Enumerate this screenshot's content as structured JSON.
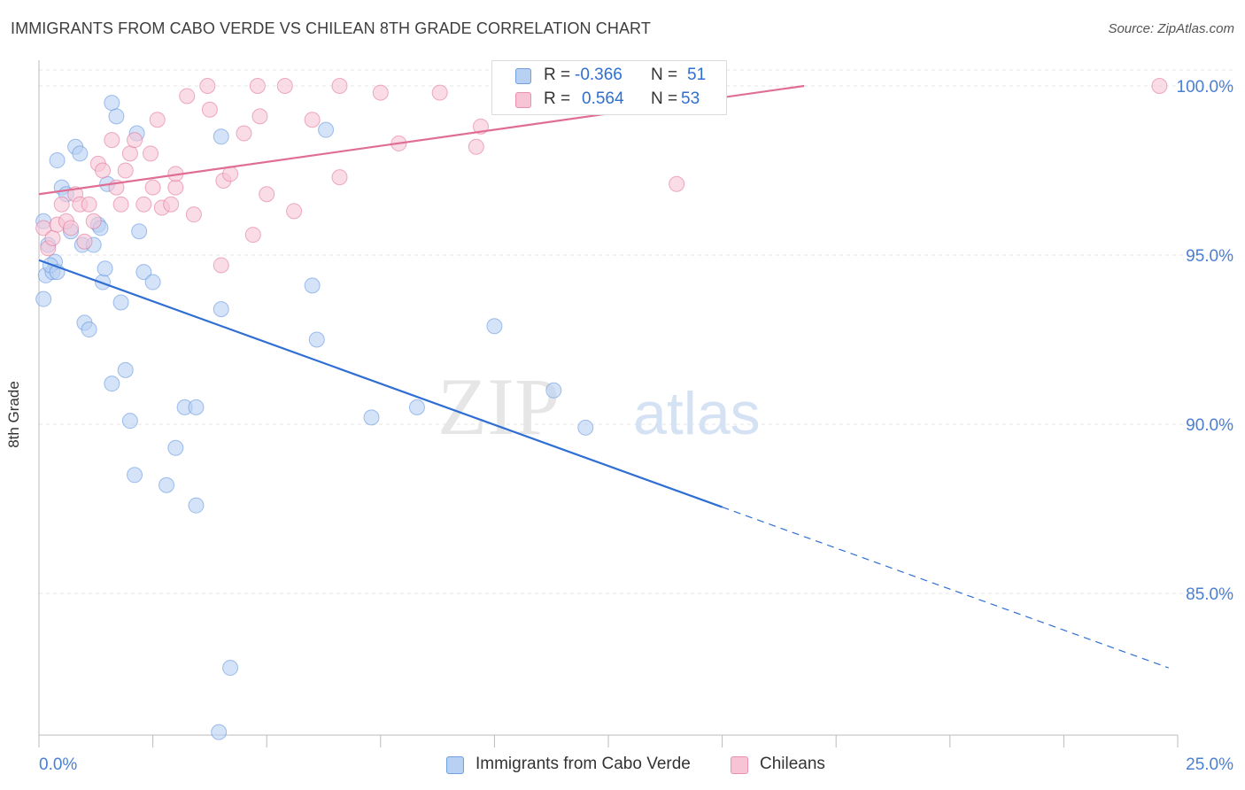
{
  "title": "IMMIGRANTS FROM CABO VERDE VS CHILEAN 8TH GRADE CORRELATION CHART",
  "source": "Source: ZipAtlas.com",
  "watermark": {
    "zip": "ZIP",
    "atlas": "atlas"
  },
  "stats": [
    {
      "r_label": "R = ",
      "r_value": "-0.366",
      "n_label": "N = ",
      "n_value": "51",
      "color": "#5b8fe0"
    },
    {
      "r_label": "R = ",
      "r_value": "0.564",
      "n_label": "N = ",
      "n_value": "53",
      "color": "#eb8fb0"
    }
  ],
  "legend": [
    {
      "label": "Immigrants from Cabo Verde",
      "color": "#b8d0f2"
    },
    {
      "label": "Chileans",
      "color": "#f7c4d5"
    }
  ],
  "chart_data": {
    "type": "scatter",
    "title": "IMMIGRANTS FROM CABO VERDE VS CHILEAN 8TH GRADE CORRELATION CHART",
    "xlabel": "",
    "ylabel": "8th Grade",
    "xlim": [
      0,
      25
    ],
    "ylim": [
      80.5,
      100.8
    ],
    "x_tick_labels": [
      "0.0%",
      "25.0%"
    ],
    "y_ticks": [
      85,
      90,
      95,
      100
    ],
    "y_tick_labels": [
      "85.0%",
      "90.0%",
      "95.0%",
      "100.0%"
    ],
    "grid": true,
    "series": [
      {
        "name": "Immigrants from Cabo Verde",
        "color": "#5b8fe0",
        "fill": "#b8d0f2",
        "trend": {
          "x0": 0,
          "y0": 94.85,
          "x1": 15.0,
          "y1": 87.55,
          "dash_to_x": 24.8,
          "dash_to_y": 82.8
        },
        "points": [
          [
            0.1,
            96.0
          ],
          [
            0.15,
            94.4
          ],
          [
            0.2,
            95.3
          ],
          [
            0.3,
            94.5
          ],
          [
            0.35,
            94.8
          ],
          [
            0.4,
            97.8
          ],
          [
            0.5,
            97.0
          ],
          [
            0.6,
            96.8
          ],
          [
            0.7,
            95.7
          ],
          [
            0.8,
            98.2
          ],
          [
            0.9,
            98.0
          ],
          [
            0.95,
            95.3
          ],
          [
            1.0,
            93.0
          ],
          [
            1.1,
            92.8
          ],
          [
            1.2,
            95.3
          ],
          [
            1.3,
            95.9
          ],
          [
            1.35,
            95.8
          ],
          [
            1.4,
            94.2
          ],
          [
            1.45,
            94.6
          ],
          [
            1.5,
            97.1
          ],
          [
            1.6,
            91.2
          ],
          [
            1.6,
            99.5
          ],
          [
            1.7,
            99.1
          ],
          [
            1.8,
            93.6
          ],
          [
            1.9,
            91.6
          ],
          [
            2.0,
            90.1
          ],
          [
            2.1,
            88.5
          ],
          [
            2.15,
            98.6
          ],
          [
            2.2,
            95.7
          ],
          [
            2.3,
            94.5
          ],
          [
            2.5,
            94.2
          ],
          [
            2.8,
            88.2
          ],
          [
            3.0,
            89.3
          ],
          [
            3.2,
            90.5
          ],
          [
            3.45,
            90.5
          ],
          [
            3.45,
            87.6
          ],
          [
            3.95,
            80.9
          ],
          [
            4.0,
            93.4
          ],
          [
            4.0,
            98.5
          ],
          [
            4.2,
            82.8
          ],
          [
            6.0,
            94.1
          ],
          [
            6.1,
            92.5
          ],
          [
            6.3,
            98.7
          ],
          [
            7.3,
            90.2
          ],
          [
            8.3,
            90.5
          ],
          [
            10.0,
            92.9
          ],
          [
            11.3,
            91.0
          ],
          [
            12.0,
            89.9
          ],
          [
            0.1,
            93.7
          ],
          [
            0.25,
            94.7
          ],
          [
            0.4,
            94.5
          ]
        ]
      },
      {
        "name": "Chileans",
        "color": "#e06e94",
        "fill": "#f7c4d5",
        "trend": {
          "x0": 0,
          "y0": 96.8,
          "x1": 16.8,
          "y1": 100.0
        },
        "points": [
          [
            0.1,
            95.8
          ],
          [
            0.2,
            95.2
          ],
          [
            0.3,
            95.5
          ],
          [
            0.4,
            95.9
          ],
          [
            0.5,
            96.5
          ],
          [
            0.6,
            96.0
          ],
          [
            0.7,
            95.8
          ],
          [
            0.8,
            96.8
          ],
          [
            0.9,
            96.5
          ],
          [
            1.0,
            95.4
          ],
          [
            1.1,
            96.5
          ],
          [
            1.2,
            96.0
          ],
          [
            1.3,
            97.7
          ],
          [
            1.4,
            97.5
          ],
          [
            1.6,
            98.4
          ],
          [
            1.7,
            97.0
          ],
          [
            1.8,
            96.5
          ],
          [
            1.9,
            97.5
          ],
          [
            2.0,
            98.0
          ],
          [
            2.1,
            98.4
          ],
          [
            2.3,
            96.5
          ],
          [
            2.45,
            98.0
          ],
          [
            2.5,
            97.0
          ],
          [
            2.6,
            99.0
          ],
          [
            2.7,
            96.4
          ],
          [
            2.9,
            96.5
          ],
          [
            3.0,
            97.0
          ],
          [
            3.0,
            97.4
          ],
          [
            3.25,
            99.7
          ],
          [
            3.4,
            96.2
          ],
          [
            3.7,
            100.0
          ],
          [
            3.75,
            99.3
          ],
          [
            4.05,
            97.2
          ],
          [
            4.2,
            97.4
          ],
          [
            4.5,
            98.6
          ],
          [
            4.7,
            95.6
          ],
          [
            4.8,
            100.0
          ],
          [
            4.85,
            99.1
          ],
          [
            5.0,
            96.8
          ],
          [
            5.4,
            100.0
          ],
          [
            5.6,
            96.3
          ],
          [
            6.0,
            99.0
          ],
          [
            6.6,
            100.0
          ],
          [
            6.6,
            97.3
          ],
          [
            7.5,
            99.8
          ],
          [
            7.9,
            98.3
          ],
          [
            8.8,
            99.8
          ],
          [
            9.6,
            98.2
          ],
          [
            9.7,
            98.8
          ],
          [
            13.6,
            100.0
          ],
          [
            14.0,
            97.1
          ],
          [
            24.6,
            100.0
          ],
          [
            4.0,
            94.7
          ]
        ]
      }
    ]
  }
}
